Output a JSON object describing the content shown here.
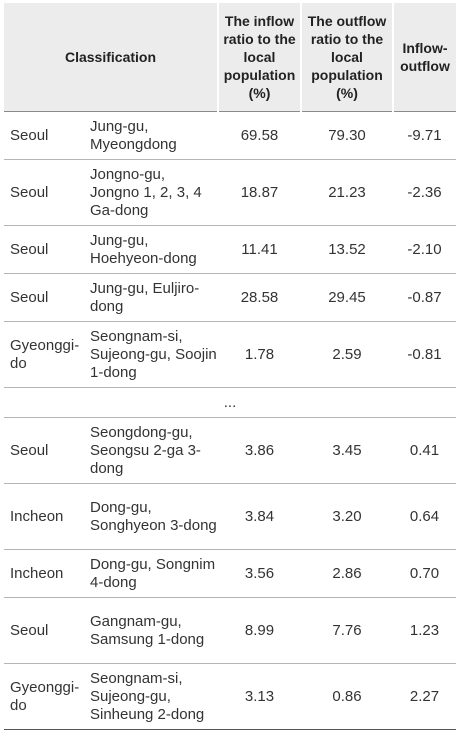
{
  "header": {
    "classification": "Classification",
    "inflow_ratio": "The inflow ratio to the local population (%)",
    "outflow_ratio": "The outflow ratio to the local population (%)",
    "difference": "Inflow-outflow"
  },
  "rows": [
    {
      "region": "Seoul",
      "dong": "Jung-gu, Myeongdong",
      "inflow": "69.58",
      "outflow": "79.30",
      "diff": "-9.71"
    },
    {
      "region": "Seoul",
      "dong": "Jongno-gu, Jongno 1, 2, 3, 4 Ga-dong",
      "inflow": "18.87",
      "outflow": "21.23",
      "diff": "-2.36"
    },
    {
      "region": "Seoul",
      "dong": "Jung-gu, Hoehyeon-dong",
      "inflow": "11.41",
      "outflow": "13.52",
      "diff": "-2.10"
    },
    {
      "region": "Seoul",
      "dong": "Jung-gu, Euljiro-dong",
      "inflow": "28.58",
      "outflow": "29.45",
      "diff": "-0.87"
    },
    {
      "region": "Gyeonggi-do",
      "dong": "Seongnam-si, Sujeong-gu, Soojin 1-dong",
      "inflow": "1.78",
      "outflow": "2.59",
      "diff": "-0.81"
    },
    {
      "region": "Seoul",
      "dong": "Seongdong-gu, Seongsu 2-ga 3-dong",
      "inflow": "3.86",
      "outflow": "3.45",
      "diff": "0.41"
    },
    {
      "region": "Incheon",
      "dong": "Dong-gu, Songhyeon 3-dong",
      "inflow": "3.84",
      "outflow": "3.20",
      "diff": "0.64"
    },
    {
      "region": "Incheon",
      "dong": "Dong-gu, Songnim 4-dong",
      "inflow": "3.56",
      "outflow": "2.86",
      "diff": "0.70"
    },
    {
      "region": "Seoul",
      "dong": "Gangnam-gu, Samsung 1-dong",
      "inflow": "8.99",
      "outflow": "7.76",
      "diff": "1.23"
    },
    {
      "region": "Gyeonggi-do",
      "dong": "Seongnam-si, Sujeong-gu, Sinheung 2-dong",
      "inflow": "3.13",
      "outflow": "0.86",
      "diff": "2.27"
    }
  ],
  "ellipsis": "..."
}
